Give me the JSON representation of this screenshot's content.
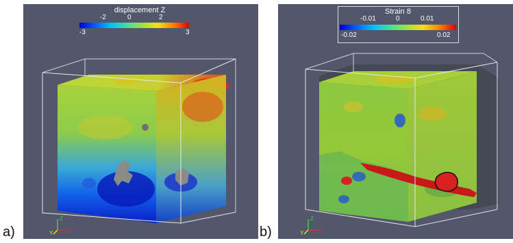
{
  "figures": {
    "a": {
      "label": "a)",
      "colorbar": {
        "title": "displacement Z",
        "ticks_top": [
          "-2",
          "0",
          "2"
        ],
        "ticks_bottom": [
          "-3",
          "3"
        ]
      }
    },
    "b": {
      "label": "b)",
      "colorbar": {
        "title": "Strain 8",
        "ticks_top": [
          "-0.01",
          "0",
          "0.01"
        ],
        "ticks_bottom": [
          "-0.02",
          "0.02"
        ]
      }
    }
  },
  "axis_labels": {
    "z": "Z",
    "y": "Y",
    "x": "X"
  },
  "colors": {
    "background": "#52576b",
    "scale_low": "#0000d0",
    "scale_mid": "#a0e040",
    "scale_high": "#e00000"
  }
}
